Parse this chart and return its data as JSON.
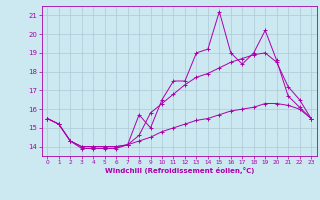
{
  "title": "",
  "xlabel": "Windchill (Refroidissement éolien,°C)",
  "ylabel": "",
  "bg_color": "#cce8f0",
  "grid_color": "#b0c8d8",
  "line_color": "#aa00aa",
  "xlim": [
    -0.5,
    23.5
  ],
  "ylim": [
    13.5,
    21.5
  ],
  "yticks": [
    14,
    15,
    16,
    17,
    18,
    19,
    20,
    21
  ],
  "xticks": [
    0,
    1,
    2,
    3,
    4,
    5,
    6,
    7,
    8,
    9,
    10,
    11,
    12,
    13,
    14,
    15,
    16,
    17,
    18,
    19,
    20,
    21,
    22,
    23
  ],
  "line1_x": [
    0,
    1,
    2,
    3,
    4,
    5,
    6,
    7,
    8,
    9,
    10,
    11,
    12,
    13,
    14,
    15,
    16,
    17,
    18,
    19,
    20,
    21,
    22,
    23
  ],
  "line1_y": [
    15.5,
    15.2,
    14.3,
    13.9,
    13.9,
    13.9,
    13.9,
    14.1,
    15.7,
    15.0,
    16.5,
    17.5,
    17.5,
    19.0,
    19.2,
    21.2,
    19.0,
    18.4,
    19.0,
    20.2,
    18.6,
    16.7,
    16.1,
    15.5
  ],
  "line2_x": [
    0,
    1,
    2,
    3,
    4,
    5,
    6,
    7,
    8,
    9,
    10,
    11,
    12,
    13,
    14,
    15,
    16,
    17,
    18,
    19,
    20,
    21,
    22,
    23
  ],
  "line2_y": [
    15.5,
    15.2,
    14.3,
    14.0,
    14.0,
    14.0,
    14.0,
    14.1,
    14.6,
    15.8,
    16.3,
    16.8,
    17.3,
    17.7,
    17.9,
    18.2,
    18.5,
    18.7,
    18.9,
    19.0,
    18.5,
    17.2,
    16.5,
    15.5
  ],
  "line3_x": [
    0,
    1,
    2,
    3,
    4,
    5,
    6,
    7,
    8,
    9,
    10,
    11,
    12,
    13,
    14,
    15,
    16,
    17,
    18,
    19,
    20,
    21,
    22,
    23
  ],
  "line3_y": [
    15.5,
    15.2,
    14.3,
    14.0,
    14.0,
    14.0,
    14.0,
    14.1,
    14.3,
    14.5,
    14.8,
    15.0,
    15.2,
    15.4,
    15.5,
    15.7,
    15.9,
    16.0,
    16.1,
    16.3,
    16.3,
    16.2,
    16.0,
    15.5
  ]
}
